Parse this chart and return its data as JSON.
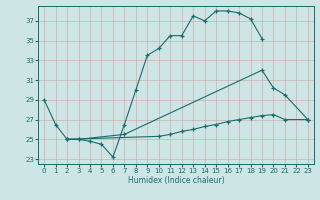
{
  "xlabel": "Humidex (Indice chaleur)",
  "background_color": "#cde5e5",
  "grid_color": "#aacccc",
  "line_color": "#1a6b6b",
  "xlim": [
    -0.5,
    23.5
  ],
  "ylim": [
    22.5,
    38.5
  ],
  "xticks": [
    0,
    1,
    2,
    3,
    4,
    5,
    6,
    7,
    8,
    9,
    10,
    11,
    12,
    13,
    14,
    15,
    16,
    17,
    18,
    19,
    20,
    21,
    22,
    23
  ],
  "yticks": [
    23,
    25,
    27,
    29,
    31,
    33,
    35,
    37
  ],
  "series": [
    {
      "x": [
        0,
        1,
        2,
        3,
        4,
        5,
        6,
        7,
        8,
        9,
        10,
        11,
        12,
        13,
        14,
        15,
        16,
        17,
        18,
        19
      ],
      "y": [
        29.0,
        26.5,
        25.0,
        25.0,
        24.8,
        24.5,
        23.2,
        26.5,
        30.0,
        33.5,
        34.2,
        35.5,
        35.5,
        37.5,
        37.0,
        38.0,
        38.0,
        37.8,
        37.2,
        35.2
      ]
    },
    {
      "x": [
        2,
        3,
        7,
        19,
        20,
        21,
        23
      ],
      "y": [
        25.0,
        25.0,
        25.5,
        32.0,
        30.2,
        29.5,
        27.0
      ]
    },
    {
      "x": [
        2,
        10,
        11,
        12,
        13,
        14,
        15,
        16,
        17,
        18,
        19,
        20,
        21,
        23
      ],
      "y": [
        25.0,
        25.3,
        25.5,
        25.8,
        26.0,
        26.3,
        26.5,
        26.8,
        27.0,
        27.2,
        27.4,
        27.5,
        27.0,
        27.0
      ]
    }
  ]
}
